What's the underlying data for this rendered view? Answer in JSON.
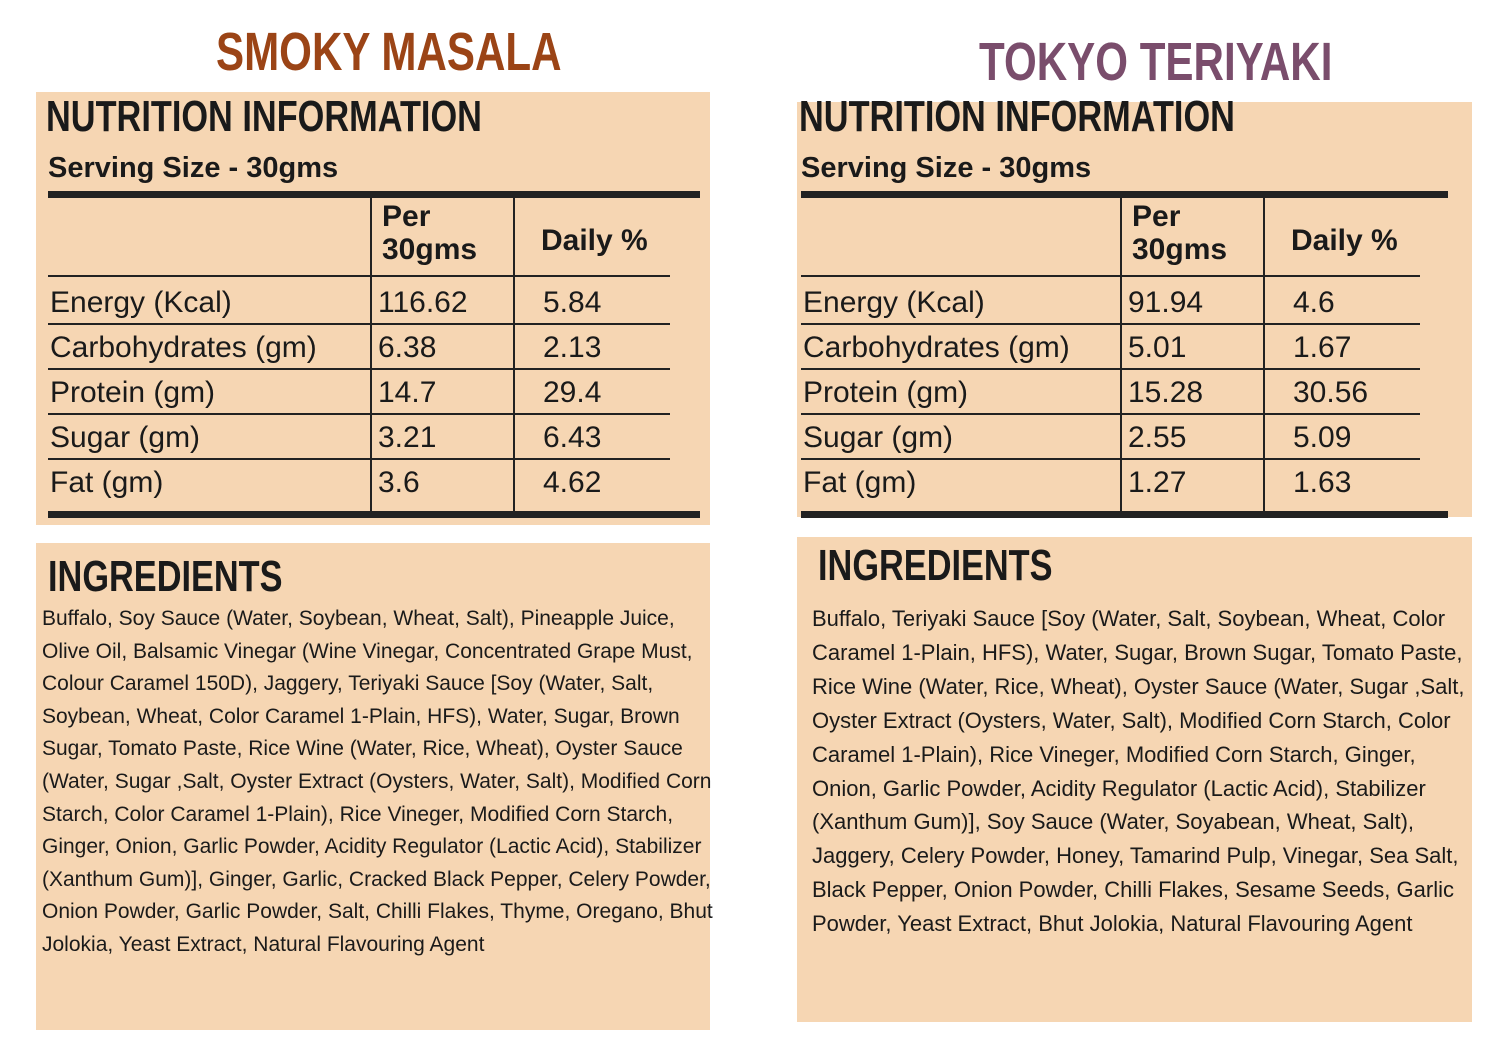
{
  "products": [
    {
      "title": "SMOKY MASALA",
      "nutrition": {
        "heading": "NUTRITION INFORMATION",
        "serving_size": "Serving Size - 30gms",
        "columns": [
          "Per 30gms",
          "Daily %"
        ],
        "rows": [
          [
            "Energy  (Kcal)",
            "116.62",
            "5.84"
          ],
          [
            "Carbohydrates (gm)",
            "6.38",
            "2.13"
          ],
          [
            "Protein (gm)",
            "14.7",
            "29.4"
          ],
          [
            "Sugar (gm)",
            "3.21",
            "6.43"
          ],
          [
            "Fat (gm)",
            "3.6",
            "4.62"
          ]
        ]
      },
      "ingredients": {
        "heading": "INGREDIENTS",
        "text": "Buffalo, Soy Sauce (Water, Soybean, Wheat, Salt), Pineapple Juice, Olive Oil, Balsamic Vinegar (Wine Vinegar, Concentrated Grape Must, Colour Caramel 150D), Jaggery, Teriyaki Sauce [Soy (Water, Salt, Soybean, Wheat, Color Caramel 1-Plain, HFS), Water, Sugar, Brown Sugar, Tomato Paste, Rice Wine (Water, Rice, Wheat), Oyster Sauce (Water, Sugar ,Salt, Oyster Extract (Oysters, Water, Salt), Modified Corn Starch, Color Caramel 1-Plain), Rice Vineger, Modified Corn Starch, Ginger, Onion, Garlic Powder, Acidity Regulator (Lactic Acid), Stabilizer (Xanthum Gum)], Ginger, Garlic, Cracked Black Pepper, Celery Powder, Onion Powder, Garlic Powder, Salt, Chilli Flakes, Thyme, Oregano, Bhut Jolokia, Yeast Extract, Natural Flavouring Agent"
      }
    },
    {
      "title": "TOKYO TERIYAKI",
      "nutrition": {
        "heading": "NUTRITION INFORMATION",
        "serving_size": "Serving Size - 30gms",
        "columns": [
          "Per 30gms",
          "Daily %"
        ],
        "rows": [
          [
            "Energy  (Kcal)",
            "91.94",
            "4.6"
          ],
          [
            "Carbohydrates (gm)",
            "5.01",
            "1.67"
          ],
          [
            "Protein (gm)",
            "15.28",
            "30.56"
          ],
          [
            "Sugar (gm)",
            "2.55",
            "5.09"
          ],
          [
            "Fat (gm)",
            "1.27",
            "1.63"
          ]
        ]
      },
      "ingredients": {
        "heading": "INGREDIENTS",
        "text": "Buffalo, Teriyaki Sauce [Soy (Water, Salt, Soybean, Wheat, Color Caramel 1-Plain, HFS), Water, Sugar, Brown Sugar, Tomato Paste, Rice Wine (Water, Rice, Wheat), Oyster Sauce (Water, Sugar ,Salt, Oyster Extract (Oysters, Water, Salt), Modified Corn Starch, Color Caramel 1-Plain), Rice Vineger, Modified Corn Starch, Ginger, Onion, Garlic Powder, Acidity Regulator (Lactic Acid), Stabilizer (Xanthum Gum)], Soy Sauce (Water, Soyabean, Wheat, Salt), Jaggery, Celery Powder, Honey, Tamarind Pulp, Vinegar, Sea Salt, Black Pepper, Onion Powder, Chilli Flakes, Sesame Seeds, Garlic Powder, Yeast Extract, Bhut Jolokia, Natural Flavouring Agent"
      }
    }
  ]
}
